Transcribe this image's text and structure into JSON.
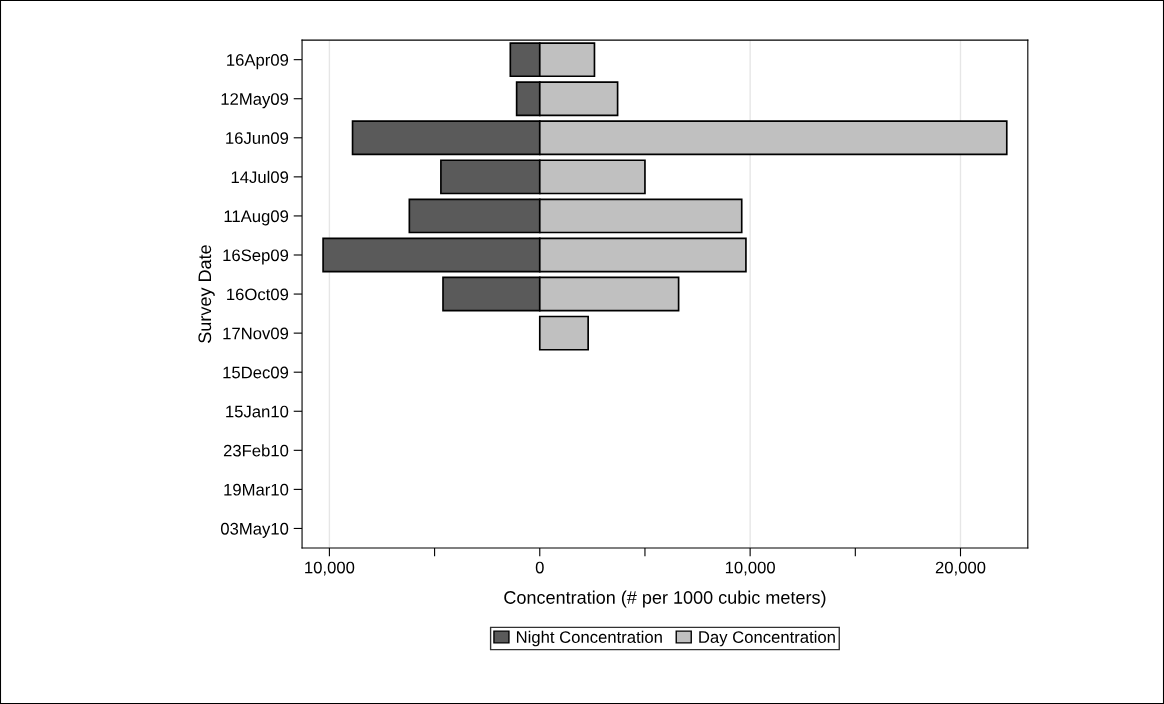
{
  "chart_data": {
    "type": "bar",
    "orientation": "horizontal",
    "stacked": true,
    "categories": [
      "16Apr09",
      "12May09",
      "16Jun09",
      "14Jul09",
      "11Aug09",
      "16Sep09",
      "16Oct09",
      "17Nov09",
      "15Dec09",
      "15Jan10",
      "23Feb10",
      "19Mar10",
      "03May10"
    ],
    "series": [
      {
        "name": "Night Concentration",
        "color": "#5a5a5a",
        "values": [
          -1400,
          -1100,
          -8900,
          -4700,
          -6200,
          -10300,
          -4600,
          0,
          0,
          0,
          0,
          0,
          0
        ]
      },
      {
        "name": "Day Concentration",
        "color": "#c0c0c0",
        "values": [
          2600,
          3700,
          22200,
          5000,
          9600,
          9800,
          6600,
          2300,
          0,
          0,
          0,
          0,
          0
        ]
      }
    ],
    "xlabel": "Concentration (# per 1000 cubic meters)",
    "ylabel": "Survey Date",
    "xlim": [
      -11300,
      23200
    ],
    "xticks": [
      {
        "value": -10000,
        "label": "10,000"
      },
      {
        "value": -5000,
        "label": null
      },
      0,
      {
        "value": 5000,
        "label": null
      },
      {
        "value": 10000,
        "label": "10,000"
      },
      {
        "value": 15000,
        "label": null
      },
      {
        "value": 20000,
        "label": "20,000"
      }
    ],
    "grid": "x",
    "legend": "bottom"
  }
}
